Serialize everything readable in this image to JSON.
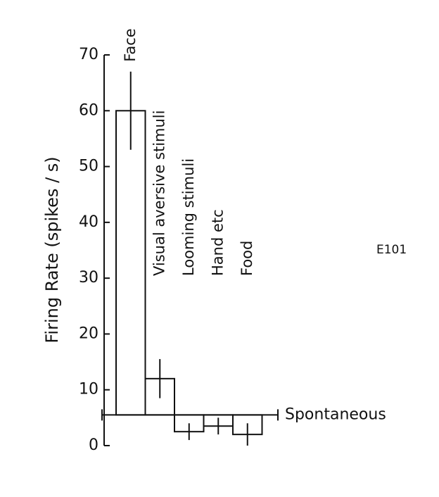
{
  "chart_data": {
    "type": "bar",
    "y_label": "Firing   Rate (spikes / s)",
    "annotation": "E101",
    "categories": [
      "Face",
      "Visual  aversive stimuli",
      "Looming stimuli",
      "Hand  etc",
      "Food"
    ],
    "values": [
      60,
      12,
      2.5,
      3.5,
      2
    ],
    "errors": [
      7,
      3.5,
      1.5,
      1.5,
      2
    ],
    "baseline": 5.5,
    "baseline_label": "Spontaneous",
    "ylim": [
      0,
      70
    ],
    "yticks": [
      0,
      10,
      20,
      30,
      40,
      50,
      60,
      70
    ],
    "color": "#ffffff"
  }
}
